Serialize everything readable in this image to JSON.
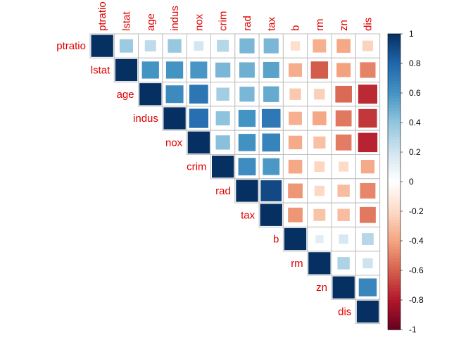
{
  "chart_data": {
    "type": "heatmap",
    "variables": [
      "ptratio",
      "lstat",
      "age",
      "indus",
      "nox",
      "crim",
      "rad",
      "tax",
      "b",
      "rm",
      "zn",
      "dis"
    ],
    "matrix_shape": "upper",
    "method": "square",
    "values": [
      [
        1,
        0.37,
        0.26,
        0.38,
        0.19,
        0.29,
        0.46,
        0.46,
        -0.18,
        -0.36,
        -0.39,
        -0.23
      ],
      [
        0.37,
        1,
        0.6,
        0.6,
        0.59,
        0.46,
        0.49,
        0.54,
        -0.37,
        -0.61,
        -0.41,
        -0.5
      ],
      [
        0.26,
        0.6,
        1,
        0.64,
        0.73,
        0.35,
        0.46,
        0.51,
        -0.27,
        -0.24,
        -0.57,
        -0.75
      ],
      [
        0.38,
        0.6,
        0.64,
        1,
        0.76,
        0.41,
        0.6,
        0.72,
        -0.36,
        -0.39,
        -0.53,
        -0.71
      ],
      [
        0.19,
        0.59,
        0.73,
        0.76,
        1,
        0.42,
        0.61,
        0.67,
        -0.38,
        -0.3,
        -0.52,
        -0.77
      ],
      [
        0.29,
        0.46,
        0.35,
        0.41,
        0.42,
        1,
        0.63,
        0.58,
        -0.39,
        -0.22,
        -0.2,
        -0.38
      ],
      [
        0.46,
        0.49,
        0.46,
        0.6,
        0.61,
        0.63,
        1,
        0.91,
        -0.44,
        -0.21,
        -0.31,
        -0.49
      ],
      [
        0.46,
        0.54,
        0.51,
        0.72,
        0.67,
        0.58,
        0.91,
        1,
        -0.44,
        -0.29,
        -0.31,
        -0.53
      ],
      [
        -0.18,
        -0.37,
        -0.27,
        -0.36,
        -0.38,
        -0.39,
        -0.44,
        -0.44,
        1,
        0.13,
        0.18,
        0.29
      ],
      [
        -0.36,
        -0.61,
        -0.24,
        -0.39,
        -0.3,
        -0.22,
        -0.21,
        -0.29,
        0.13,
        1,
        0.31,
        0.21
      ],
      [
        -0.39,
        -0.41,
        -0.57,
        -0.53,
        -0.52,
        -0.2,
        -0.31,
        -0.31,
        0.18,
        0.31,
        1,
        0.66
      ],
      [
        -0.23,
        -0.5,
        -0.75,
        -0.71,
        -0.77,
        -0.38,
        -0.49,
        -0.53,
        0.29,
        0.21,
        0.66,
        1
      ]
    ],
    "color_scale": {
      "range": [
        -1,
        1
      ],
      "ticks": [
        "1",
        "0.8",
        "0.6",
        "0.4",
        "0.2",
        "0",
        "-0.2",
        "-0.4",
        "-0.6",
        "-0.8",
        "-1"
      ],
      "colors": [
        "#67001F",
        "#B2182B",
        "#D6604D",
        "#F4A582",
        "#FDDBC7",
        "#FFFFFF",
        "#D1E5F0",
        "#92C5DE",
        "#4393C3",
        "#2166AC",
        "#053061"
      ]
    },
    "label_color": "#E00000",
    "grid_color": "#BEBEBE",
    "title": "",
    "xlabel": "",
    "ylabel": ""
  }
}
